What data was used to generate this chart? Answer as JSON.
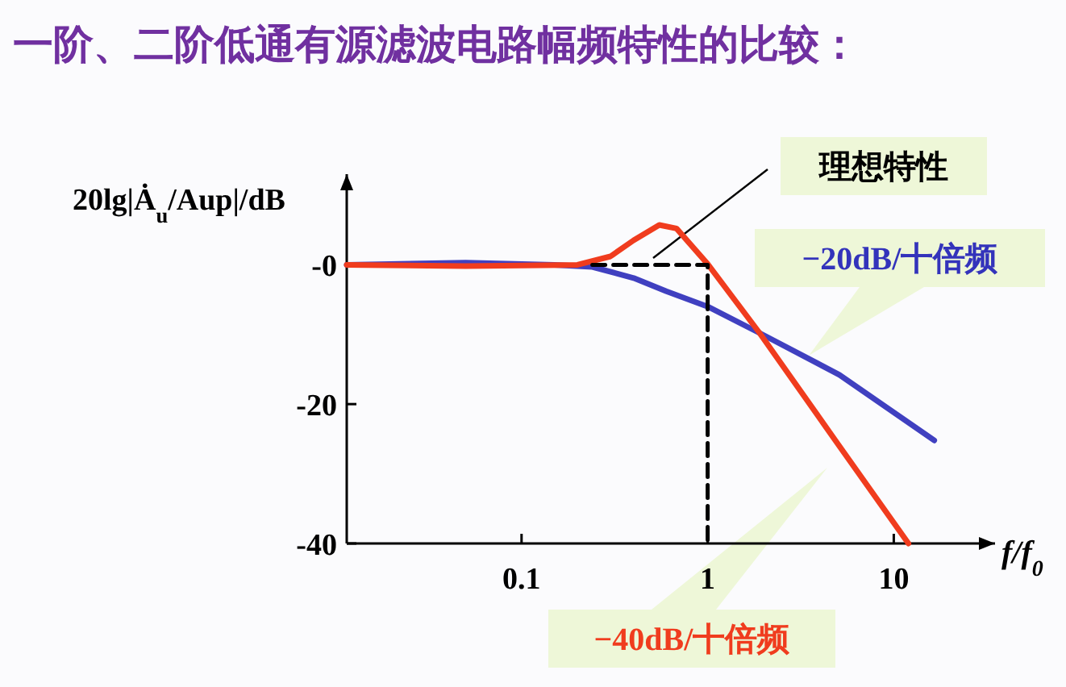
{
  "chart_data": {
    "type": "line",
    "title": "一阶、二阶低通有源滤波电路幅频特性的比较：",
    "ylabel": "20lg|Ȧ$_{u}$/Aup|/dB",
    "xlabel": "f/f$_{0}$",
    "log": "x",
    "xlim": [
      0.0115,
      35
    ],
    "ylim": [
      -40,
      13
    ],
    "xticks": [
      0.1,
      1,
      10
    ],
    "yticks": [
      {
        "value": 0,
        "label": "-0"
      },
      {
        "value": -20,
        "label": "-20"
      },
      {
        "value": -40,
        "label": "-40"
      }
    ],
    "grid": false,
    "series": [
      {
        "color": "#4040c0",
        "x": [
          0.0115,
          0.05,
          0.15,
          0.24,
          0.4,
          0.6,
          1,
          1.9,
          5.1,
          16.5
        ],
        "values": [
          0,
          0.3,
          0,
          -0.3,
          -1.9,
          -3.8,
          -6,
          -9.8,
          -15.8,
          -25.2
        ]
      },
      {
        "color": "#f03c1e",
        "x": [
          0.0115,
          0.05,
          0.2,
          0.3,
          0.4,
          0.55,
          0.68,
          1,
          1.9,
          5,
          12
        ],
        "values": [
          0,
          -0.2,
          0,
          1.2,
          3.5,
          5.7,
          5.2,
          0.1,
          -9.8,
          -25.7,
          -40
        ]
      },
      {
        "color": "#000000",
        "line_style": "dashed",
        "x": [
          0.24,
          1,
          1
        ],
        "values": [
          0,
          0,
          -40
        ]
      }
    ],
    "annotations": [
      "理想特性",
      {
        "text": "−20dB/十倍频",
        "x": 3.5,
        "y": -13
      },
      "−40dB/十倍频"
    ]
  }
}
